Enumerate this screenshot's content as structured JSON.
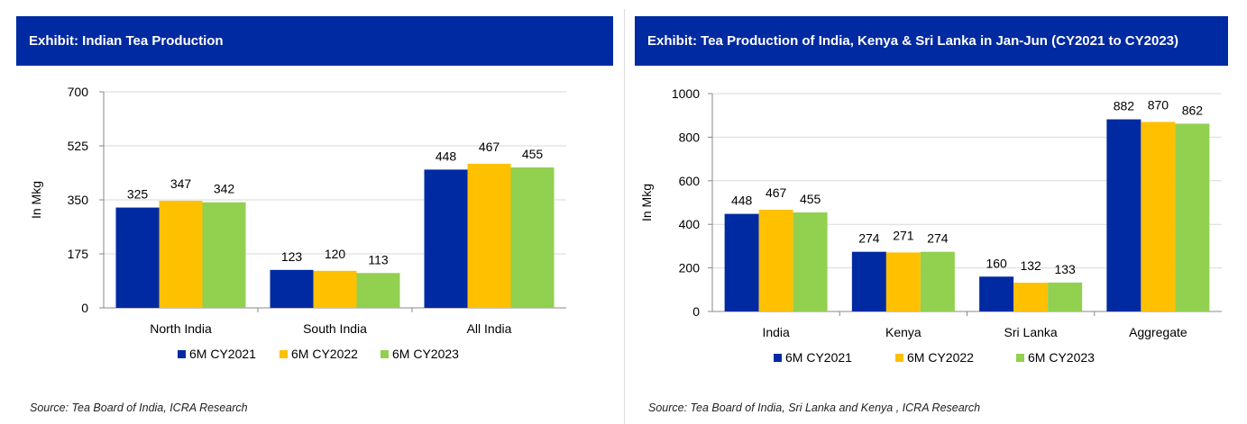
{
  "colors": {
    "header": "#002aa1",
    "s1": "#002aa1",
    "s2": "#ffc000",
    "s3": "#92d050"
  },
  "chart_data": [
    {
      "type": "bar",
      "title": "Exhibit: Indian Tea Production",
      "ylabel": "In Mkg",
      "ylim": [
        0,
        700
      ],
      "yticks": [
        0,
        175,
        350,
        525,
        700
      ],
      "categories": [
        "North India",
        "South India",
        "All India"
      ],
      "series": [
        {
          "name": "6M CY2021",
          "values": [
            325,
            123,
            448
          ]
        },
        {
          "name": "6M CY2022",
          "values": [
            347,
            120,
            467
          ]
        },
        {
          "name": "6M CY2023",
          "values": [
            342,
            113,
            455
          ]
        }
      ],
      "legend": "bottom",
      "source": "Source: Tea Board of India, ICRA Research"
    },
    {
      "type": "bar",
      "title": "Exhibit: Tea Production of India, Kenya & Sri Lanka in Jan-Jun (CY2021 to CY2023)",
      "ylabel": "In Mkg",
      "ylim": [
        0,
        1000
      ],
      "yticks": [
        0,
        200,
        400,
        600,
        800,
        1000
      ],
      "categories": [
        "India",
        "Kenya",
        "Sri Lanka",
        "Aggregate"
      ],
      "series": [
        {
          "name": "6M CY2021",
          "values": [
            448,
            274,
            160,
            882
          ]
        },
        {
          "name": "6M CY2022",
          "values": [
            467,
            271,
            132,
            870
          ]
        },
        {
          "name": "6M CY2023",
          "values": [
            455,
            274,
            133,
            862
          ]
        }
      ],
      "legend": "bottom",
      "source": "Source: Tea Board of  India, Sri Lanka and Kenya , ICRA Research"
    }
  ]
}
